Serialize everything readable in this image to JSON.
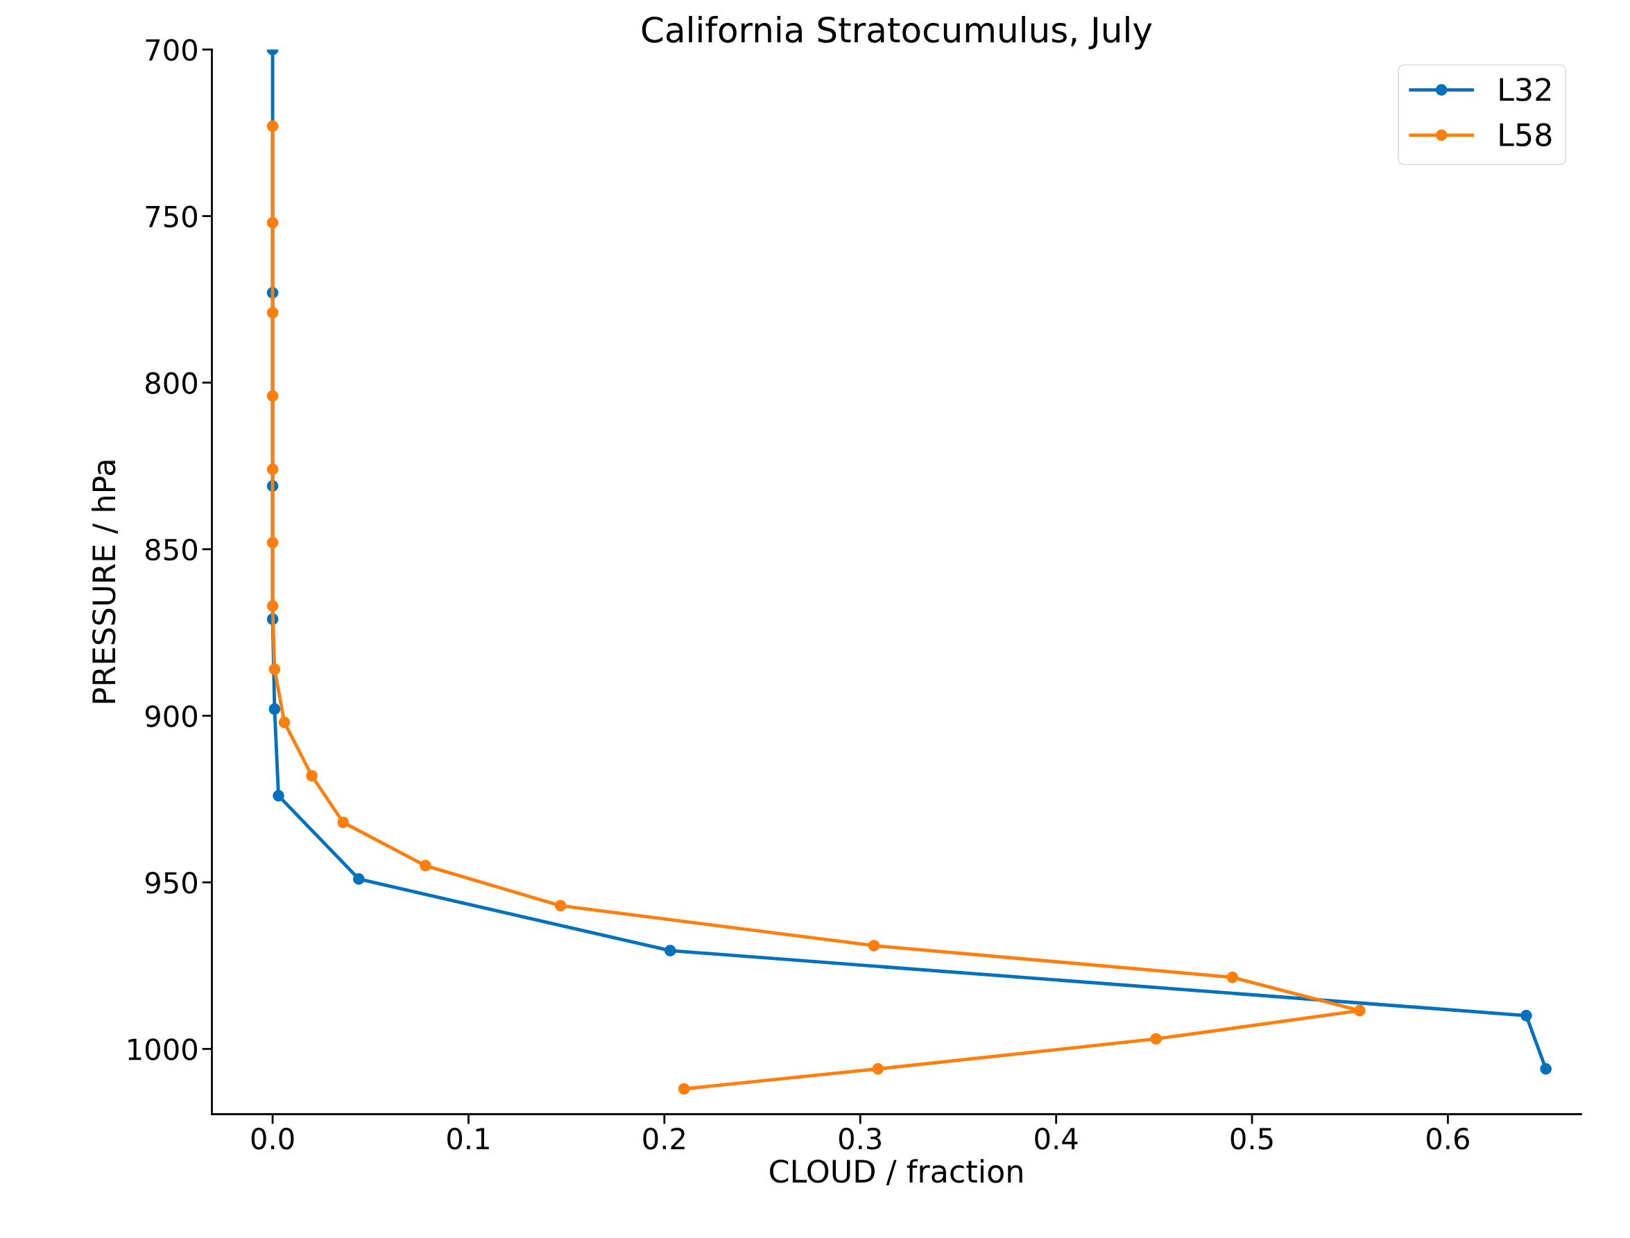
{
  "chart_data": {
    "type": "line",
    "title": "California Stratocumulus, July",
    "xlabel": "CLOUD / fraction",
    "ylabel": "PRESSURE / hPa",
    "xlim": [
      -0.031,
      0.668
    ],
    "xticks": [
      {
        "value": 0.0,
        "label": "0.0"
      },
      0.1,
      0.2,
      0.3,
      0.4,
      0.5,
      0.6
    ],
    "ylim": [
      1019.6,
      700
    ],
    "yticks": [
      700,
      750,
      800,
      850,
      900,
      950,
      1000
    ],
    "grid": false,
    "legend": "top right",
    "marker": "circle",
    "line_style": "solid",
    "series": [
      {
        "name": "L32",
        "color": "#0072bd",
        "x": [
          0,
          0,
          0,
          0,
          0.001,
          0.003,
          0.044,
          0.203,
          0.64,
          0.65
        ],
        "values": [
          700,
          773,
          831,
          871,
          898,
          924,
          949,
          970.5,
          990,
          1006
        ]
      },
      {
        "name": "L58",
        "color": "#ff7f0e",
        "x": [
          0,
          0,
          0,
          0,
          0,
          0,
          0,
          0.001,
          0.006,
          0.02,
          0.036,
          0.078,
          0.147,
          0.307,
          0.49,
          0.555,
          0.451,
          0.309,
          0.21
        ],
        "values": [
          723,
          752,
          779,
          804,
          826,
          848,
          867,
          886,
          902,
          918,
          932,
          945,
          957,
          969,
          978.5,
          988.5,
          997,
          1006,
          1012
        ]
      }
    ]
  }
}
